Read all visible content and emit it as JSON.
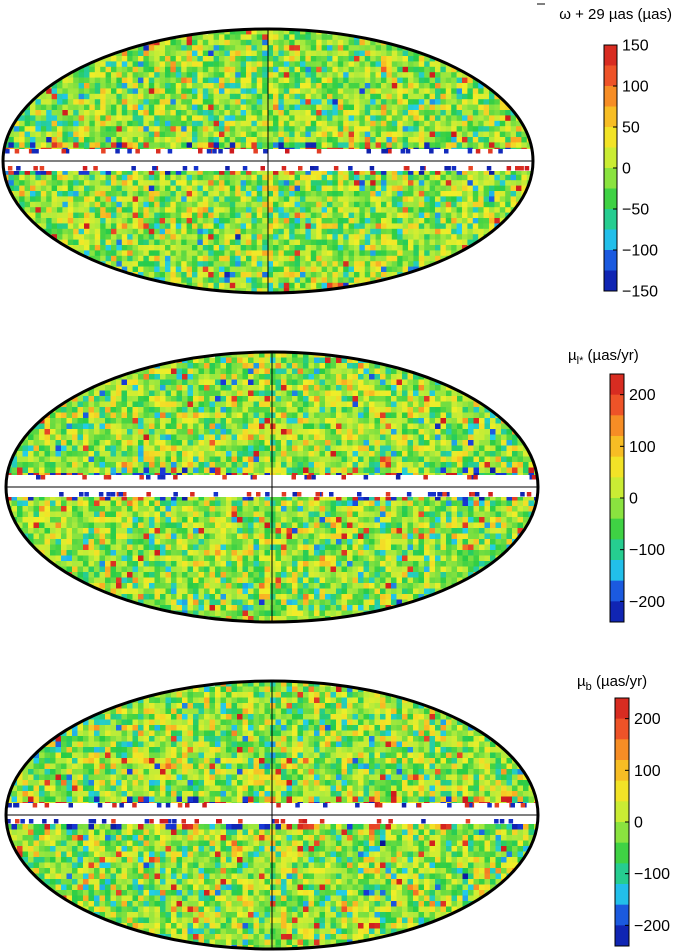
{
  "chart_data": [
    {
      "type": "heatmap",
      "projection": "Hammer-Aitoff all-sky (galactic)",
      "title_main": "ω",
      "title_rest": " + 29 µas  (µas)",
      "colormap": "rainbow (blue-cyan-green-yellow-orange-red)",
      "clim": [
        -150,
        150
      ],
      "colorbar_ticks": [
        {
          "value": 150,
          "label": "150"
        },
        {
          "value": 100,
          "label": "100"
        },
        {
          "value": 50,
          "label": "50"
        },
        {
          "value": 0,
          "label": "0"
        },
        {
          "value": -50,
          "label": "−50"
        },
        {
          "value": -100,
          "label": "−100"
        },
        {
          "value": -150,
          "label": "−150"
        }
      ],
      "galactic_plane_masked": true
    },
    {
      "type": "heatmap",
      "projection": "Hammer-Aitoff all-sky (galactic)",
      "title_main": "µ",
      "title_sub": "l*",
      "title_rest": "  (µas/yr)",
      "colormap": "rainbow (blue-cyan-green-yellow-orange-red)",
      "clim": [
        -240,
        240
      ],
      "colorbar_ticks": [
        {
          "value": 200,
          "label": "200"
        },
        {
          "value": 100,
          "label": "100"
        },
        {
          "value": 0,
          "label": "0"
        },
        {
          "value": -100,
          "label": "−100"
        },
        {
          "value": -200,
          "label": "−200"
        }
      ],
      "galactic_plane_masked": true
    },
    {
      "type": "heatmap",
      "projection": "Hammer-Aitoff all-sky (galactic)",
      "title_main": "µ",
      "title_sub": "b",
      "title_rest": "  (µas/yr)",
      "colormap": "rainbow (blue-cyan-green-yellow-orange-red)",
      "clim": [
        -240,
        240
      ],
      "colorbar_ticks": [
        {
          "value": 200,
          "label": "200"
        },
        {
          "value": 100,
          "label": "100"
        },
        {
          "value": 0,
          "label": "0"
        },
        {
          "value": -100,
          "label": "−100"
        },
        {
          "value": -200,
          "label": "−200"
        }
      ],
      "galactic_plane_masked": true
    }
  ]
}
